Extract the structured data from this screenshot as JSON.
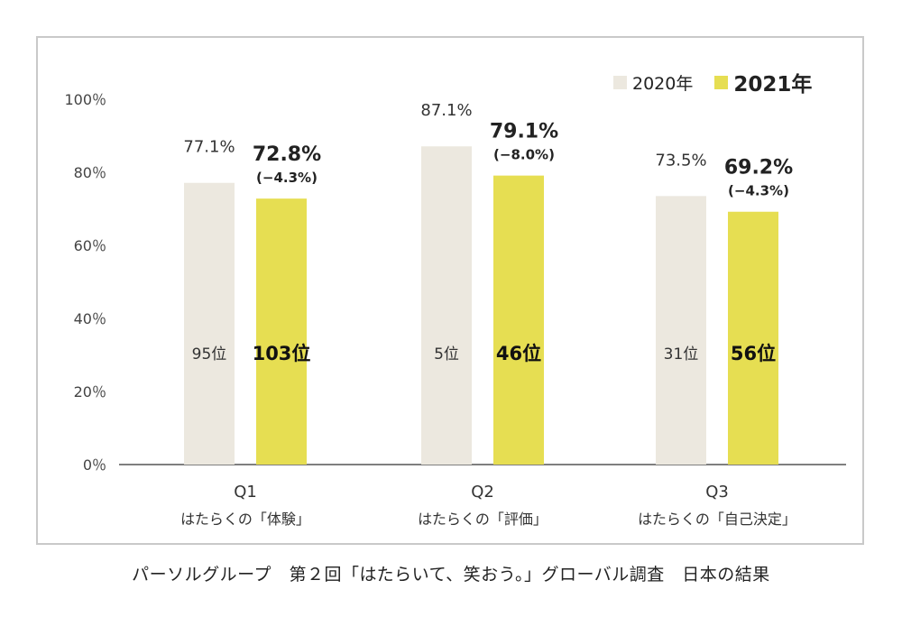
{
  "caption": "パーソルグループ　第２回「はたらいて、笑おう。」グローバル調査　日本の結果",
  "colors": {
    "y2020": "#ece8df",
    "y2021": "#e6de52",
    "axis": "#555555"
  },
  "chart_data": {
    "type": "bar",
    "ylim": [
      0,
      100
    ],
    "yticks": [
      "0％",
      "20％",
      "40％",
      "60％",
      "80％",
      "100％"
    ],
    "ytick_values": [
      0,
      20,
      40,
      60,
      80,
      100
    ],
    "categories": [
      "Q1",
      "Q2",
      "Q3"
    ],
    "category_sublabels": [
      "はたらくの「体験」",
      "はたらくの「評価」",
      "はたらくの「自己決定」"
    ],
    "series": [
      {
        "name": "2020年",
        "values": [
          77.1,
          87.1,
          73.5
        ],
        "value_labels": [
          "77.1%",
          "87.1%",
          "73.5%"
        ],
        "rank_labels": [
          "95位",
          "5位",
          "31位"
        ]
      },
      {
        "name": "2021年",
        "values": [
          72.8,
          79.1,
          69.2
        ],
        "value_labels": [
          "72.8%",
          "79.1%",
          "69.2%"
        ],
        "change_labels": [
          "(−4.3%)",
          "(−8.0%)",
          "(−4.3%)"
        ],
        "rank_labels": [
          "103位",
          "46位",
          "56位"
        ]
      }
    ],
    "legend": "top-right",
    "grid": false
  }
}
